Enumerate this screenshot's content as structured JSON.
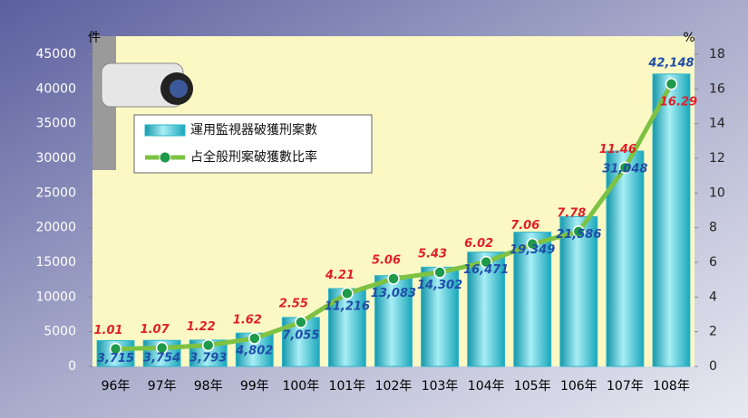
{
  "chart_data": {
    "type": "bar",
    "y_label": "件",
    "y2_label": "%",
    "categories": [
      "96年",
      "97年",
      "98年",
      "99年",
      "100年",
      "101年",
      "102年",
      "103年",
      "104年",
      "105年",
      "106年",
      "107年",
      "108年"
    ],
    "series": [
      {
        "name": "運用監視器破獲刑案數",
        "color": "#2bb5c8",
        "type": "bar",
        "values": [
          3715,
          3754,
          3793,
          4802,
          7055,
          11216,
          13083,
          14302,
          16471,
          19349,
          21586,
          31048,
          42148
        ],
        "value_labels": [
          "3,715",
          "3,754",
          "3,793",
          "4,802",
          "7,055",
          "11,216",
          "13,083",
          "14,302",
          "16,471",
          "19,349",
          "21,586",
          "31,048",
          "42,148"
        ]
      },
      {
        "name": "占全般刑案破獲數比率",
        "color": "#7dc242",
        "type": "line",
        "axis": "y2",
        "values": [
          1.01,
          1.07,
          1.22,
          1.62,
          2.55,
          4.21,
          5.06,
          5.43,
          6.02,
          7.06,
          7.78,
          11.46,
          16.29
        ]
      }
    ],
    "ylim": [
      0,
      45000
    ],
    "yticks": [
      0,
      5000,
      10000,
      15000,
      20000,
      25000,
      30000,
      35000,
      40000,
      45000
    ],
    "y2lim": [
      0,
      18
    ],
    "y2ticks": [
      0,
      2,
      4,
      6,
      8,
      10,
      12,
      14,
      16,
      18
    ]
  }
}
